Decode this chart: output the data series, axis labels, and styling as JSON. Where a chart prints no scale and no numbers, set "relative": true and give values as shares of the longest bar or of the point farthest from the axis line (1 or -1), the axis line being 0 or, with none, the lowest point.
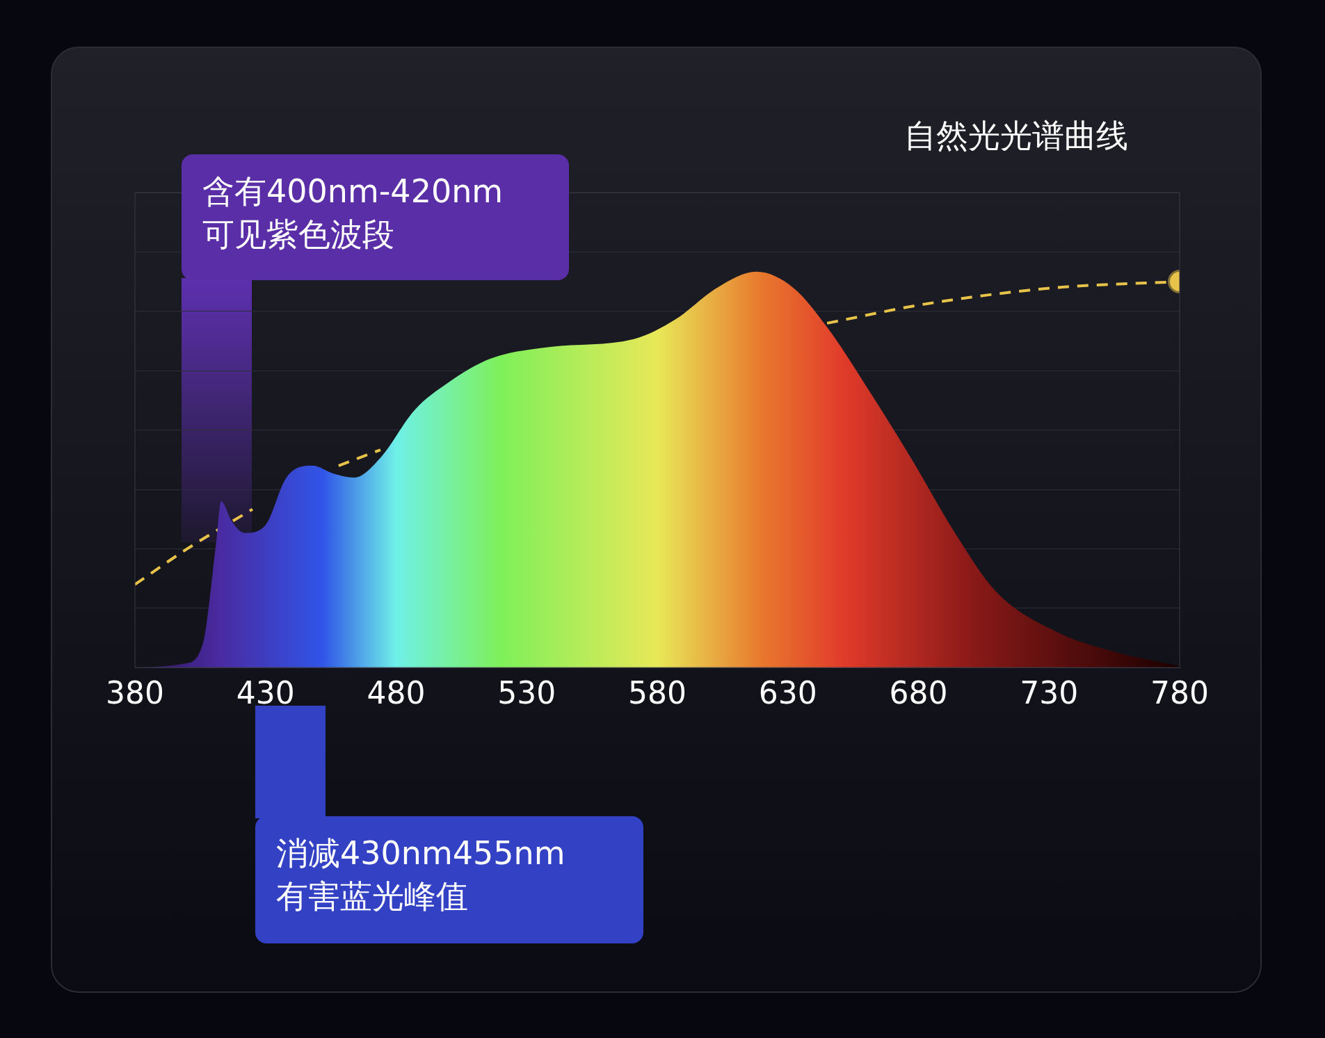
{
  "chart_data": {
    "type": "area",
    "title": "自然光光谱曲线",
    "relative": true,
    "xlim": [
      380,
      780
    ],
    "xticks": [
      380,
      430,
      480,
      530,
      580,
      630,
      680,
      730,
      780
    ],
    "grid": "y",
    "legend": false,
    "series": [
      {
        "color": "#e03a2a",
        "x": [
          380,
          399,
          406,
          411,
          413,
          417,
          422,
          430,
          438,
          448,
          456,
          464,
          474,
          487,
          500,
          516,
          539,
          571,
          587,
          603,
          618,
          632,
          645,
          662,
          678,
          694,
          710,
          733,
          755,
          780
        ],
        "values": [
          0,
          0.01,
          0.06,
          0.31,
          0.42,
          0.37,
          0.34,
          0.36,
          0.48,
          0.51,
          0.49,
          0.48,
          0.53,
          0.65,
          0.72,
          0.78,
          0.81,
          0.83,
          0.88,
          0.96,
          1,
          0.96,
          0.86,
          0.69,
          0.52,
          0.34,
          0.19,
          0.09,
          0.04,
          0.004
        ]
      },
      {
        "type": "line",
        "color": "#e8c34a",
        "line_style": "dashed",
        "x": [
          380,
          400,
          425,
          440,
          458,
          474,
          500,
          600,
          645,
          684,
          733,
          780
        ],
        "values": [
          0.21,
          0.3,
          0.4,
          null,
          0.51,
          0.55,
          null,
          null,
          0.87,
          0.92,
          0.96,
          0.975
        ]
      }
    ],
    "annotations": [
      "含有400nm-420nm\n可见紫色波段",
      "消减430nm455nm\n有害蓝光峰值"
    ]
  }
}
